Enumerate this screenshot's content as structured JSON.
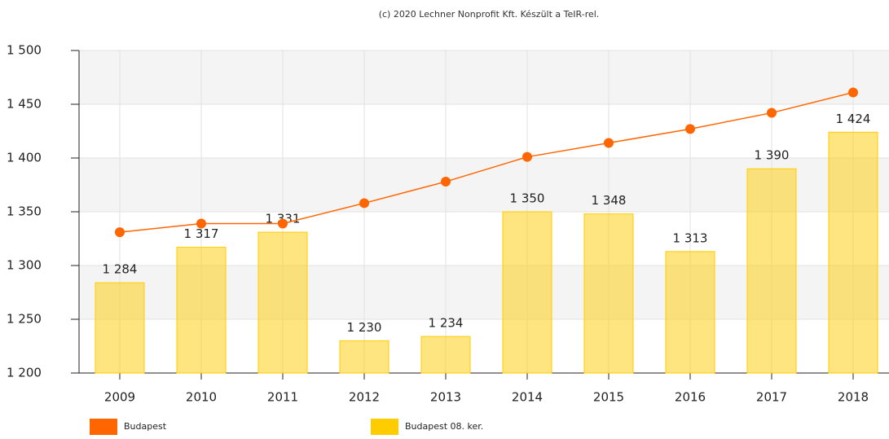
{
  "chart_data": {
    "type": "bar",
    "credit": "(c) 2020 Lechner Nonprofit Kft. Készült a TeIR-rel.",
    "categories": [
      "2009",
      "2010",
      "2011",
      "2012",
      "2013",
      "2014",
      "2015",
      "2016",
      "2017",
      "2018"
    ],
    "series": [
      {
        "name": "Budapest",
        "type": "line",
        "color": "#ff6600",
        "values": [
          1331,
          1339,
          1339,
          1358,
          1378,
          1401,
          1414,
          1427,
          1442,
          1461
        ]
      },
      {
        "name": "Budapest 08. ker.",
        "type": "bar",
        "color": "#ffcc00",
        "values": [
          1284,
          1317,
          1331,
          1230,
          1234,
          1350,
          1348,
          1313,
          1390,
          1424
        ],
        "value_labels": [
          "1 284",
          "1 317",
          "1 331",
          "1 230",
          "1 234",
          "1 350",
          "1 348",
          "1 313",
          "1 390",
          "1 424"
        ]
      }
    ],
    "ylim": [
      1200,
      1500
    ],
    "yticks": [
      {
        "value": 1200,
        "label": "1 200"
      },
      {
        "value": 1250,
        "label": "1 250"
      },
      {
        "value": 1300,
        "label": "1 300"
      },
      {
        "value": 1350,
        "label": "1 350"
      },
      {
        "value": 1400,
        "label": "1 400"
      },
      {
        "value": 1450,
        "label": "1 450"
      },
      {
        "value": 1500,
        "label": "1 500"
      }
    ],
    "grid": true,
    "legend": "bottom-left"
  }
}
